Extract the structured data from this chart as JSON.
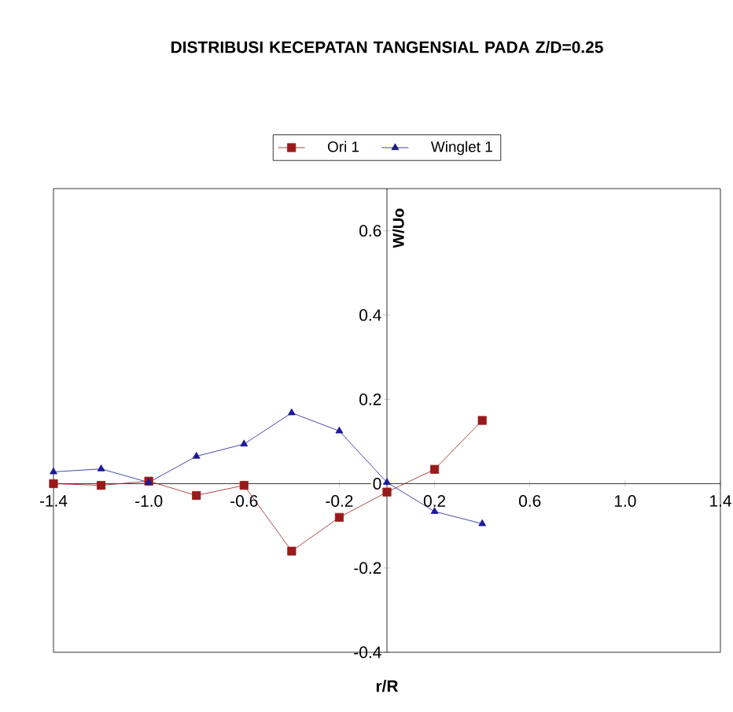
{
  "chart_data": {
    "type": "line",
    "title": "DISTRIBUSI KECEPATAN TANGENSIAL PADA Z/D=0.25",
    "xlabel": "r/R",
    "ylabel": "W/Uo",
    "x": [
      -1.4,
      -1.2,
      -1.0,
      -0.8,
      -0.6,
      -0.4,
      -0.2,
      0,
      0.2,
      0.4
    ],
    "series": [
      {
        "name": "Ori 1",
        "color": "#991a1a",
        "marker": "square",
        "values": [
          0,
          -0.004,
          0.006,
          -0.028,
          -0.004,
          -0.16,
          -0.08,
          -0.02,
          0.034,
          0.15
        ]
      },
      {
        "name": "Winglet 1",
        "color": "#1a1a99",
        "marker": "triangle",
        "values": [
          0.028,
          0.035,
          0.003,
          0.065,
          0.094,
          0.168,
          0.125,
          0.003,
          -0.066,
          -0.095
        ]
      }
    ],
    "xlim": [
      -1.4,
      1.4
    ],
    "xticks": [
      {
        "value": -1.4,
        "label": "-1.4"
      },
      {
        "value": -1.0,
        "label": "-1.0"
      },
      {
        "value": -0.6,
        "label": "-0.6"
      },
      {
        "value": -0.2,
        "label": "-0.2"
      },
      {
        "value": 0.2,
        "label": "0.2"
      },
      {
        "value": 0.6,
        "label": "0.6"
      },
      {
        "value": 1.0,
        "label": "1.0"
      },
      {
        "value": 1.4,
        "label": "1.4"
      }
    ],
    "ylim": [
      -0.4,
      0.7
    ],
    "yticks": [
      {
        "value": -0.4,
        "label": "-0.4"
      },
      {
        "value": -0.2,
        "label": "-0.2"
      },
      {
        "value": 0,
        "label": "0"
      },
      {
        "value": 0.2,
        "label": "0.2"
      },
      {
        "value": 0.4,
        "label": "0.4"
      },
      {
        "value": 0.6,
        "label": "0.6"
      }
    ],
    "grid": false,
    "legend": "top"
  }
}
